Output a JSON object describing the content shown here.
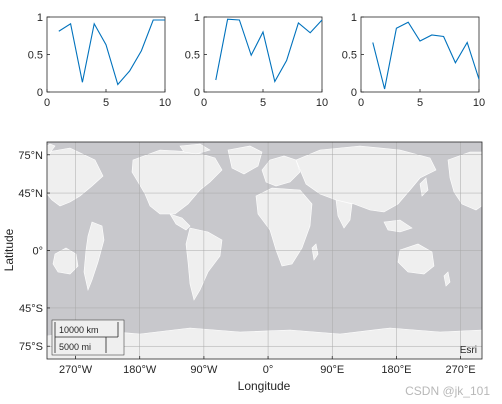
{
  "chart_data": [
    {
      "type": "line",
      "x": [
        1,
        2,
        3,
        4,
        5,
        6,
        7,
        8,
        9,
        10
      ],
      "series": [
        {
          "values": [
            0.81,
            0.91,
            0.13,
            0.91,
            0.63,
            0.1,
            0.28,
            0.55,
            0.96,
            0.96
          ],
          "color": "#0072bd"
        }
      ],
      "xlim": [
        0,
        10
      ],
      "ylim": [
        0,
        1
      ],
      "xticks": [
        "0",
        "5",
        "10"
      ],
      "yticks": [
        "0",
        "0.5",
        "1"
      ]
    },
    {
      "type": "line",
      "x": [
        1,
        2,
        3,
        4,
        5,
        6,
        7,
        8,
        9,
        10
      ],
      "series": [
        {
          "values": [
            0.16,
            0.97,
            0.96,
            0.49,
            0.8,
            0.14,
            0.42,
            0.92,
            0.79,
            0.96
          ],
          "color": "#0072bd"
        }
      ],
      "xlim": [
        0,
        10
      ],
      "ylim": [
        0,
        1
      ],
      "xticks": [
        "0",
        "5",
        "10"
      ],
      "yticks": [
        "0",
        "0.5",
        "1"
      ]
    },
    {
      "type": "line",
      "x": [
        1,
        2,
        3,
        4,
        5,
        6,
        7,
        8,
        9,
        10
      ],
      "series": [
        {
          "values": [
            0.66,
            0.04,
            0.85,
            0.93,
            0.68,
            0.76,
            0.74,
            0.39,
            0.66,
            0.17
          ],
          "color": "#0072bd"
        }
      ],
      "xlim": [
        0,
        10
      ],
      "ylim": [
        0,
        1
      ],
      "xticks": [
        "0",
        "5",
        "10"
      ],
      "yticks": [
        "0",
        "0.5",
        "1"
      ]
    },
    {
      "type": "map",
      "xlabel": "Longitude",
      "ylabel": "Latitude",
      "xlim": [
        -310,
        300
      ],
      "ylim": [
        -85,
        85
      ],
      "xticks": [
        {
          "value": -270,
          "label": "270°W"
        },
        {
          "value": -180,
          "label": "180°W"
        },
        {
          "value": -90,
          "label": "90°W"
        },
        {
          "value": 0,
          "label": "0°"
        },
        {
          "value": 90,
          "label": "90°E"
        },
        {
          "value": 180,
          "label": "180°E"
        },
        {
          "value": 270,
          "label": "270°E"
        }
      ],
      "yticks": [
        {
          "value": 75,
          "label": "75°N"
        },
        {
          "value": 45,
          "label": "45°N"
        },
        {
          "value": 0,
          "label": "0°"
        },
        {
          "value": -45,
          "label": "45°S"
        },
        {
          "value": -75,
          "label": "75°S"
        }
      ],
      "grid": true,
      "basemap_colors": {
        "ocean": "#c8c8cc",
        "land": "#efefef"
      },
      "scalebar": {
        "km_label": "10000 km",
        "mi_label": "5000 mi"
      },
      "attribution": "Esri"
    }
  ],
  "watermark": "CSDN @jk_101"
}
